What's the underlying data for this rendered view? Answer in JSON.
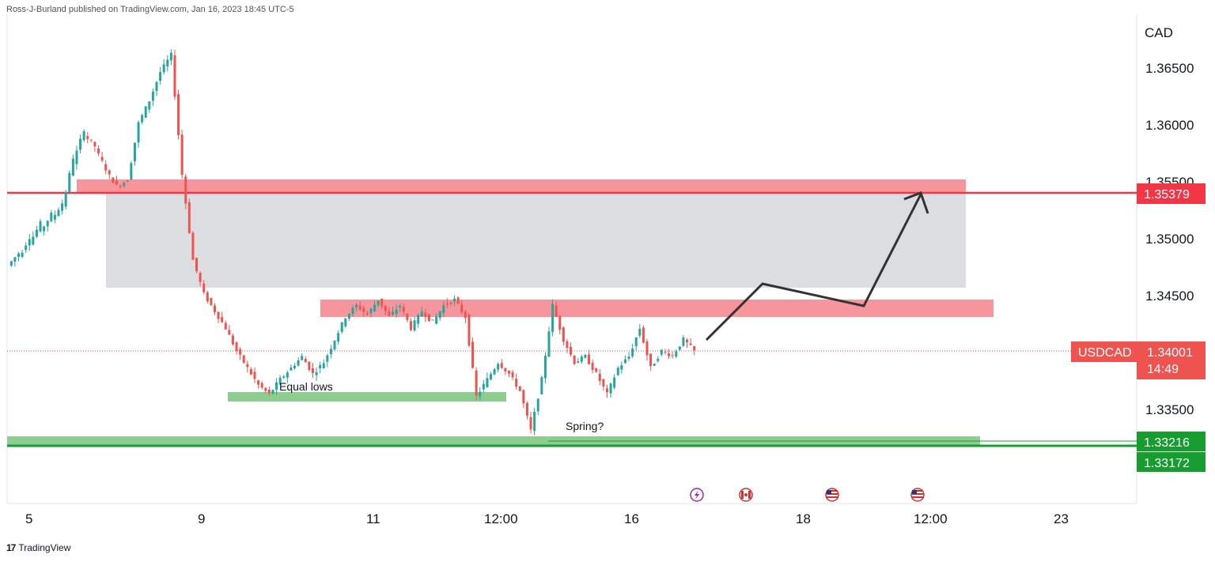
{
  "header": "Ross-J-Burland published on TradingView.com, Jan 16, 2023 18:45 UTC-5",
  "footer": {
    "logo": "17",
    "brand": "TradingView"
  },
  "colors": {
    "up": "#26a69a",
    "down": "#ef5350",
    "resistance_zone": "#f7959c",
    "grey_zone": "#dcdde1",
    "support_zone": "#8fcc8f",
    "red_line": "#f23645",
    "green_line": "#169c2f",
    "arrow": "#333333"
  },
  "chart_data": {
    "type": "candlestick",
    "symbol": "USDCAD",
    "currency_label": "CAD",
    "last_price": "1.34001",
    "countdown": "14:49",
    "y_ticks": [
      "1.36500",
      "1.36000",
      "1.35500",
      "1.35000",
      "1.34500",
      "1.33500"
    ],
    "x_ticks": [
      "5",
      "9",
      "11",
      "12:00",
      "16",
      "18",
      "12:00",
      "23"
    ],
    "levels": [
      {
        "price": 1.35379,
        "label": "1.35379",
        "color": "#f23645"
      },
      {
        "price": 1.33216,
        "label": "1.33216",
        "color": "#169c2f"
      },
      {
        "price": 1.33172,
        "label": "1.33172",
        "color": "#169c2f"
      }
    ],
    "zones": [
      {
        "name": "upper-resistance-zone",
        "from": 1.3537,
        "to": 1.3556
      },
      {
        "name": "grey-range-zone",
        "from": 1.3457,
        "to": 1.3537
      },
      {
        "name": "lower-resistance-zone",
        "from": 1.3432,
        "to": 1.3447
      },
      {
        "name": "equal-lows-zone",
        "from": 1.3359,
        "to": 1.3364
      },
      {
        "name": "spring-zone",
        "from": 1.3321,
        "to": 1.3325
      }
    ],
    "annotations": [
      "Equal lows",
      "Spring?"
    ],
    "ohlc_path": [
      [
        1.3475,
        1.3486
      ],
      [
        1.3482,
        1.35
      ],
      [
        1.3495,
        1.3512
      ],
      [
        1.3505,
        1.352
      ],
      [
        1.3515,
        1.353
      ],
      [
        1.3525,
        1.357
      ],
      [
        1.3565,
        1.3595
      ],
      [
        1.359,
        1.358
      ],
      [
        1.3578,
        1.356
      ],
      [
        1.3558,
        1.3545
      ],
      [
        1.3545,
        1.355
      ],
      [
        1.355,
        1.36
      ],
      [
        1.36,
        1.362
      ],
      [
        1.362,
        1.3645
      ],
      [
        1.3645,
        1.366
      ],
      [
        1.366,
        1.3555
      ],
      [
        1.3555,
        1.348
      ],
      [
        1.348,
        1.345
      ],
      [
        1.345,
        1.3435
      ],
      [
        1.3435,
        1.342
      ],
      [
        1.342,
        1.34
      ],
      [
        1.34,
        1.3385
      ],
      [
        1.3385,
        1.337
      ],
      [
        1.337,
        1.3362
      ],
      [
        1.3362,
        1.3375
      ],
      [
        1.3375,
        1.3385
      ],
      [
        1.3385,
        1.3395
      ],
      [
        1.3395,
        1.338
      ],
      [
        1.338,
        1.339
      ],
      [
        1.339,
        1.341
      ],
      [
        1.341,
        1.343
      ],
      [
        1.343,
        1.344
      ],
      [
        1.344,
        1.3432
      ],
      [
        1.3432,
        1.3445
      ],
      [
        1.3445,
        1.343
      ],
      [
        1.343,
        1.344
      ],
      [
        1.344,
        1.342
      ],
      [
        1.342,
        1.3435
      ],
      [
        1.3435,
        1.3425
      ],
      [
        1.3425,
        1.344
      ],
      [
        1.344,
        1.3445
      ],
      [
        1.3445,
        1.343
      ],
      [
        1.343,
        1.336
      ],
      [
        1.336,
        1.3375
      ],
      [
        1.3375,
        1.339
      ],
      [
        1.339,
        1.338
      ],
      [
        1.338,
        1.3365
      ],
      [
        1.3365,
        1.333
      ],
      [
        1.333,
        1.3375
      ],
      [
        1.3375,
        1.344
      ],
      [
        1.344,
        1.341
      ],
      [
        1.341,
        1.339
      ],
      [
        1.339,
        1.3395
      ],
      [
        1.3395,
        1.338
      ],
      [
        1.338,
        1.3362
      ],
      [
        1.3362,
        1.3385
      ],
      [
        1.3385,
        1.3395
      ],
      [
        1.3395,
        1.342
      ],
      [
        1.342,
        1.3385
      ],
      [
        1.3385,
        1.34
      ],
      [
        1.34,
        1.3396
      ],
      [
        1.3396,
        1.341
      ],
      [
        1.341,
        1.34
      ]
    ],
    "projection": [
      1.341,
      1.3458,
      1.344,
      1.3538
    ]
  }
}
